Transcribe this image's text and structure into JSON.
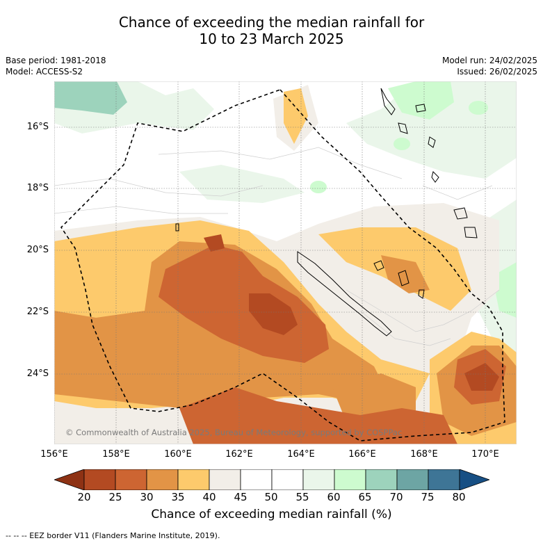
{
  "title": {
    "line1": "Chance of exceeding the median rainfall for",
    "line2": "10 to 23 March 2025"
  },
  "info_left": {
    "base_period": "Base period: 1981-2018",
    "model": "Model: ACCESS-S2"
  },
  "info_right": {
    "model_run": "Model run: 24/02/2025",
    "issued": "Issued: 26/02/2025"
  },
  "map": {
    "lat_labels": [
      "16°S",
      "18°S",
      "20°S",
      "22°S",
      "24°S"
    ],
    "lon_labels": [
      "156°E",
      "158°E",
      "160°E",
      "162°E",
      "164°E",
      "166°E",
      "168°E",
      "170°E"
    ],
    "copyright": "© Commonwealth of Australia 2025, Bureau of Meteorology, supported by COSPPac"
  },
  "colorbar": {
    "ticks": [
      "20",
      "25",
      "30",
      "35",
      "40",
      "45",
      "50",
      "55",
      "60",
      "65",
      "70",
      "75",
      "80"
    ],
    "colors": [
      "#8e3214",
      "#b34a22",
      "#cd6532",
      "#e29446",
      "#fdca6c",
      "#f2eee8",
      "#ffffff",
      "#ffffff",
      "#eaf6ea",
      "#cdfbcf",
      "#9dd3bc",
      "#6da5a4",
      "#3e7596",
      "#174f84"
    ],
    "label": "Chance of exceeding median rainfall (%)"
  },
  "footer": {
    "legend": "--  --  -- EEZ border V11 (Flanders Marine Institute, 2019)."
  }
}
